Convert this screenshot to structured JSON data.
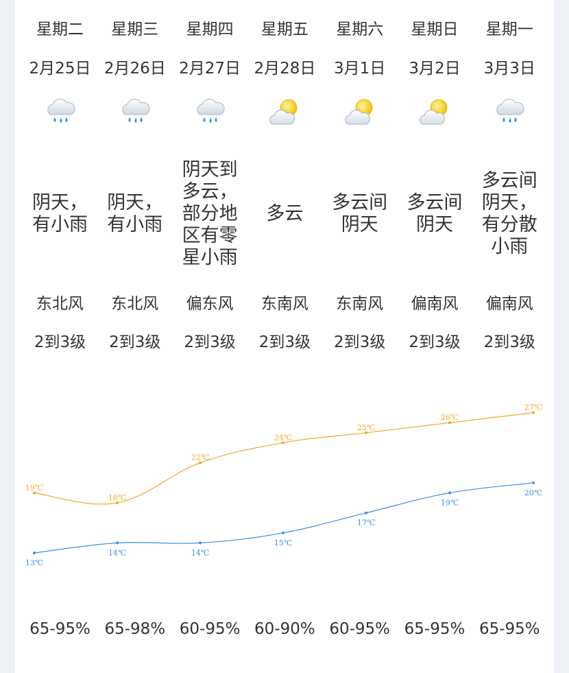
{
  "days": [
    {
      "weekday": "星期二",
      "date": "2月25日",
      "icon": "rain-cloud-icon",
      "desc": "阴天，\n有小雨",
      "wind": "东北风",
      "level": "2到3级",
      "humidity": "65-95%"
    },
    {
      "weekday": "星期三",
      "date": "2月26日",
      "icon": "rain-cloud-icon",
      "desc": "阴天，\n有小雨",
      "wind": "东北风",
      "level": "2到3级",
      "humidity": "65-98%"
    },
    {
      "weekday": "星期四",
      "date": "2月27日",
      "icon": "rain-cloud-icon",
      "desc": "阴天到\n多云，\n部分地\n区有零\n星小雨",
      "wind": "偏东风",
      "level": "2到3级",
      "humidity": "60-95%"
    },
    {
      "weekday": "星期五",
      "date": "2月28日",
      "icon": "sun-cloud-icon",
      "desc": "多云",
      "wind": "东南风",
      "level": "2到3级",
      "humidity": "60-90%"
    },
    {
      "weekday": "星期六",
      "date": "3月1日",
      "icon": "sun-cloud-icon",
      "desc": "多云间\n阴天",
      "wind": "东南风",
      "level": "2到3级",
      "humidity": "60-95%"
    },
    {
      "weekday": "星期日",
      "date": "3月2日",
      "icon": "sun-cloud-icon",
      "desc": "多云间\n阴天",
      "wind": "偏南风",
      "level": "2到3级",
      "humidity": "65-95%"
    },
    {
      "weekday": "星期一",
      "date": "3月3日",
      "icon": "rain-cloud-icon",
      "desc": "多云间\n阴天，\n有分散\n小雨",
      "wind": "偏南风",
      "level": "2到3级",
      "humidity": "65-95%"
    }
  ],
  "chart_data": {
    "type": "line",
    "x": [
      "2月25日",
      "2月26日",
      "2月27日",
      "2月28日",
      "3月1日",
      "3月2日",
      "3月3日"
    ],
    "series": [
      {
        "values": [
          19,
          18,
          22,
          24,
          25,
          26,
          27
        ],
        "labels": [
          "19℃",
          "18℃",
          "22℃",
          "24℃",
          "25℃",
          "26℃",
          "27℃"
        ],
        "color": "#f5a623"
      },
      {
        "values": [
          13,
          14,
          14,
          15,
          17,
          19,
          20
        ],
        "labels": [
          "13℃",
          "14℃",
          "14℃",
          "15℃",
          "17℃",
          "19℃",
          "20℃"
        ],
        "color": "#3a8ee6"
      }
    ],
    "ylim": [
      10,
      30
    ],
    "grid": false,
    "legend": "none"
  }
}
